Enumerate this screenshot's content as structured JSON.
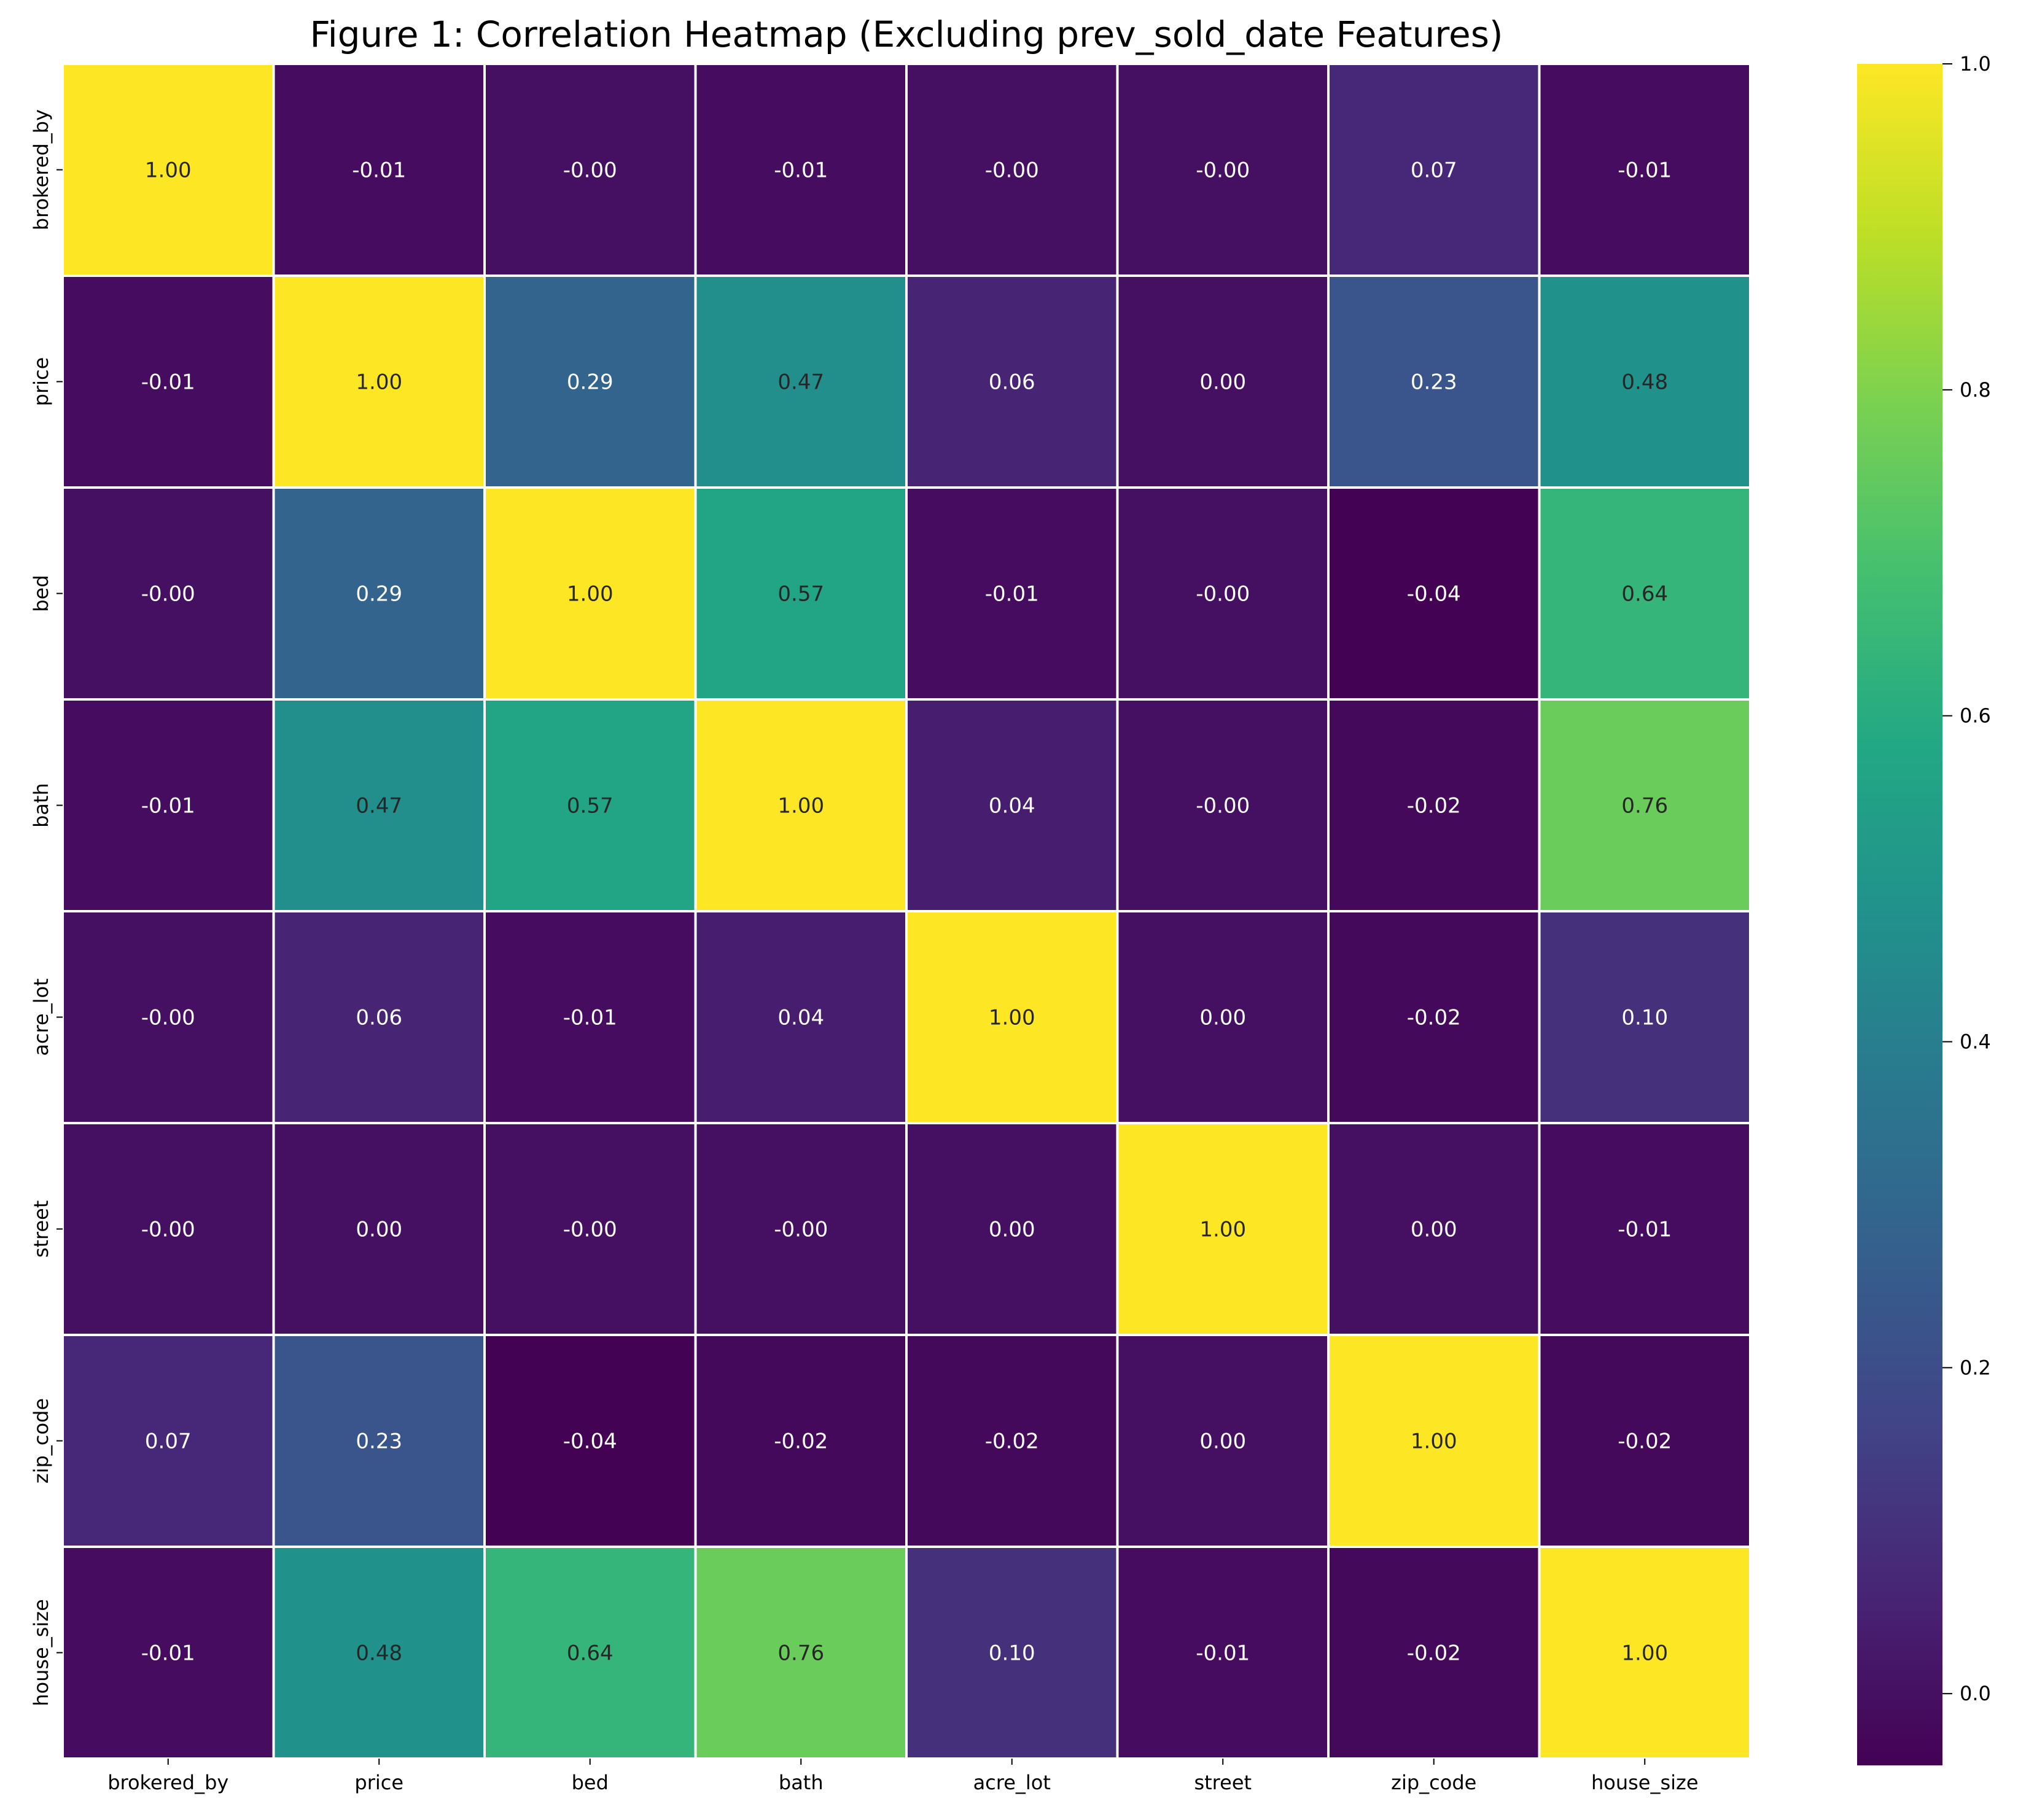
{
  "chart_data": {
    "type": "heatmap",
    "title": "Figure 1: Correlation Heatmap (Excluding prev_sold_date Features)",
    "xlabel": "",
    "ylabel": "",
    "colormap": "viridis",
    "vmin": -0.044,
    "vmax": 1.0,
    "labels": [
      "brokered_by",
      "price",
      "bed",
      "bath",
      "acre_lot",
      "street",
      "zip_code",
      "house_size"
    ],
    "values": [
      [
        1.0,
        -0.01,
        -0.0,
        -0.01,
        -0.0,
        -0.0,
        0.07,
        -0.01
      ],
      [
        -0.01,
        1.0,
        0.29,
        0.47,
        0.06,
        0.0,
        0.23,
        0.48
      ],
      [
        -0.0,
        0.29,
        1.0,
        0.57,
        -0.01,
        -0.0,
        -0.04,
        0.64
      ],
      [
        -0.01,
        0.47,
        0.57,
        1.0,
        0.04,
        -0.0,
        -0.02,
        0.76
      ],
      [
        -0.0,
        0.06,
        -0.01,
        0.04,
        1.0,
        0.0,
        -0.02,
        0.1
      ],
      [
        -0.0,
        0.0,
        -0.0,
        -0.0,
        0.0,
        1.0,
        0.0,
        -0.01
      ],
      [
        0.07,
        0.23,
        -0.04,
        -0.02,
        -0.02,
        0.0,
        1.0,
        -0.02
      ],
      [
        -0.01,
        0.48,
        0.64,
        0.76,
        0.1,
        -0.01,
        -0.02,
        1.0
      ]
    ],
    "annotations": [
      [
        "1.00",
        "-0.01",
        "-0.00",
        "-0.01",
        "-0.00",
        "-0.00",
        "0.07",
        "-0.01"
      ],
      [
        "-0.01",
        "1.00",
        "0.29",
        "0.47",
        "0.06",
        "0.00",
        "0.23",
        "0.48"
      ],
      [
        "-0.00",
        "0.29",
        "1.00",
        "0.57",
        "-0.01",
        "-0.00",
        "-0.04",
        "0.64"
      ],
      [
        "-0.01",
        "0.47",
        "0.57",
        "1.00",
        "0.04",
        "-0.00",
        "-0.02",
        "0.76"
      ],
      [
        "-0.00",
        "0.06",
        "-0.01",
        "0.04",
        "1.00",
        "0.00",
        "-0.02",
        "0.10"
      ],
      [
        "-0.00",
        "0.00",
        "-0.00",
        "-0.00",
        "0.00",
        "1.00",
        "0.00",
        "-0.01"
      ],
      [
        "0.07",
        "0.23",
        "-0.04",
        "-0.02",
        "-0.02",
        "0.00",
        "1.00",
        "-0.02"
      ],
      [
        "-0.01",
        "0.48",
        "0.64",
        "0.76",
        "0.10",
        "-0.01",
        "-0.02",
        "1.00"
      ]
    ],
    "colorbar": {
      "ticks": [
        0.0,
        0.2,
        0.4,
        0.6,
        0.8,
        1.0
      ],
      "tick_labels": [
        "0.0",
        "0.2",
        "0.4",
        "0.6",
        "0.8",
        "1.0"
      ],
      "placement": "right"
    },
    "grid": false
  }
}
